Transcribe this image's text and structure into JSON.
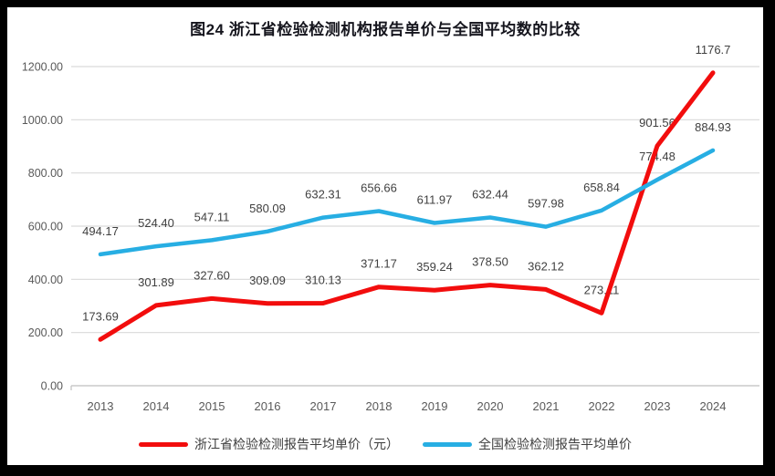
{
  "chart_data": {
    "type": "line",
    "title": "图24  浙江省检验检测机构报告单价与全国平均数的比较",
    "categories": [
      "2013",
      "2014",
      "2015",
      "2016",
      "2017",
      "2018",
      "2019",
      "2020",
      "2021",
      "2022",
      "2023",
      "2024"
    ],
    "series": [
      {
        "name": "浙江省检验检测报告平均单价（元）",
        "color": "#f20d0d",
        "stroke_width": 5,
        "values": [
          173.69,
          301.89,
          327.6,
          309.09,
          310.13,
          371.17,
          359.24,
          378.5,
          362.12,
          273.11,
          901.56,
          1176.7
        ],
        "labels": [
          "173.69",
          "301.89",
          "327.60",
          "309.09",
          "310.13",
          "371.17",
          "359.24",
          "378.50",
          "362.12",
          "273.11",
          "901.56",
          "1176.7"
        ]
      },
      {
        "name": "全国检验检测报告平均单价",
        "color": "#27aee3",
        "stroke_width": 4.5,
        "values": [
          494.17,
          524.4,
          547.11,
          580.09,
          632.31,
          656.66,
          611.97,
          632.44,
          597.98,
          658.84,
          774.48,
          884.93
        ],
        "labels": [
          "494.17",
          "524.40",
          "547.11",
          "580.09",
          "632.31",
          "656.66",
          "611.97",
          "632.44",
          "597.98",
          "658.84",
          "774.48",
          "884.93"
        ]
      }
    ],
    "ylim": [
      0,
      1200
    ],
    "ytick_step": 200,
    "ytick_labels": [
      "0.00",
      "200.00",
      "400.00",
      "600.00",
      "800.00",
      "1000.00",
      "1200.00"
    ],
    "grid": true,
    "legend_position": "bottom",
    "colors": {
      "grid": "#d9d9d9",
      "axis": "#bfbfbf",
      "tick_text": "#595959",
      "data_label_text": "#404040",
      "panel_bg": "#ffffff",
      "frame_bg": "#000000"
    }
  }
}
